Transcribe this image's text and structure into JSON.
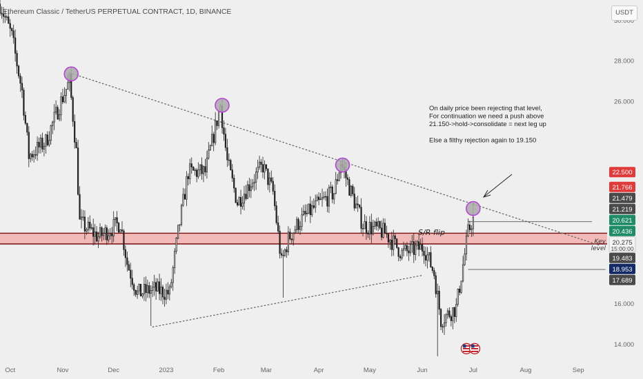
{
  "header": {
    "title": "Ethereum Classic / TetherUS PERPETUAL CONTRACT, 1D, BINANCE",
    "currency": "USDT"
  },
  "colors": {
    "background": "#efefef",
    "candle": "#222222",
    "zone_fill": "#f2b9b9",
    "zone_line": "#7a0f0f",
    "marker_fill": "#a9a9a9",
    "marker_stroke": "#b546d6",
    "trendline": "#666666"
  },
  "chart_data": {
    "type": "candlestick",
    "y_axis": {
      "ticks": [
        "30.000",
        "28.000",
        "26.000",
        "16.000",
        "14.000"
      ],
      "range": [
        13.3,
        31.0
      ],
      "position": "right"
    },
    "x_axis": {
      "ticks": [
        "Oct",
        "Nov",
        "Dec",
        "2023",
        "Feb",
        "Mar",
        "Apr",
        "May",
        "Jun",
        "Jul",
        "Aug",
        "Sep"
      ],
      "range": [
        "2022-09-25",
        "2023-09-18"
      ]
    },
    "series": [
      {
        "data_start": "2022-09-25",
        "data_end": "2023-07-01",
        "anchors": [
          [
            "2022-09-25",
            30.8
          ],
          [
            "2022-10-02",
            29.2
          ],
          [
            "2022-10-08",
            26.5
          ],
          [
            "2022-10-12",
            23.3
          ],
          [
            "2022-10-22",
            24.0
          ],
          [
            "2022-10-31",
            26.0
          ],
          [
            "2022-11-05",
            27.0
          ],
          [
            "2022-11-09",
            23.5
          ],
          [
            "2022-11-11",
            20.0
          ],
          [
            "2022-11-22",
            19.3
          ],
          [
            "2022-12-05",
            20.0
          ],
          [
            "2022-12-09",
            18.0
          ],
          [
            "2022-12-15",
            16.5
          ],
          [
            "2022-12-25",
            16.7
          ],
          [
            "2023-01-03",
            16.5
          ],
          [
            "2023-01-08",
            19.5
          ],
          [
            "2023-01-14",
            22.5
          ],
          [
            "2023-01-24",
            22.5
          ],
          [
            "2023-02-02",
            25.8
          ],
          [
            "2023-02-06",
            23.0
          ],
          [
            "2023-02-12",
            21.0
          ],
          [
            "2023-02-20",
            22.0
          ],
          [
            "2023-02-27",
            22.8
          ],
          [
            "2023-03-05",
            21.5
          ],
          [
            "2023-03-10",
            18.0
          ],
          [
            "2023-03-14",
            19.2
          ],
          [
            "2023-03-20",
            20.0
          ],
          [
            "2023-03-30",
            20.8
          ],
          [
            "2023-04-10",
            21.5
          ],
          [
            "2023-04-14",
            23.0
          ],
          [
            "2023-04-20",
            21.5
          ],
          [
            "2023-04-27",
            19.9
          ],
          [
            "2023-05-10",
            19.5
          ],
          [
            "2023-05-20",
            18.5
          ],
          [
            "2023-06-02",
            18.8
          ],
          [
            "2023-06-08",
            17.5
          ],
          [
            "2023-06-12",
            15.2
          ],
          [
            "2023-06-21",
            15.8
          ],
          [
            "2023-06-28",
            19.5
          ],
          [
            "2023-07-01",
            20.27
          ]
        ],
        "spikes": [
          [
            "2022-11-06",
            27.3
          ],
          [
            "2023-02-03",
            26.1
          ],
          [
            "2023-04-15",
            23.2
          ],
          [
            "2023-06-10",
            13.4
          ],
          [
            "2022-12-23",
            14.9
          ],
          [
            "2023-03-11",
            16.3
          ],
          [
            "2023-07-01",
            21.0
          ]
        ]
      }
    ],
    "price_labels": [
      {
        "value": 22.5,
        "text": "22.500",
        "color": "#e03b3b"
      },
      {
        "value": 21.766,
        "text": "21.766",
        "color": "#e03b3b"
      },
      {
        "value": 21.479,
        "text": "21.479",
        "color": "#4a4a4a"
      },
      {
        "value": 21.219,
        "text": "21.219",
        "color": "#4a4a4a"
      },
      {
        "value": 20.621,
        "text": "20.621",
        "color": "#1f8b68"
      },
      {
        "value": 20.436,
        "text": "20.436",
        "color": "#1f8b68"
      },
      {
        "value": 20.275,
        "text": "20.275",
        "color": "#f4f4f4",
        "text_color": "#333333",
        "sub": "15:00:00"
      },
      {
        "value": 19.483,
        "text": "19.483",
        "color": "#4a4a4a"
      },
      {
        "value": 18.953,
        "text": "18.953",
        "color": "#132a66"
      },
      {
        "value": 17.689,
        "text": "17.689",
        "color": "#4a4a4a"
      }
    ],
    "zone": {
      "from": 18.95,
      "to": 19.48
    },
    "trendlines": [
      {
        "from": [
          "2022-11-07",
          27.35
        ],
        "to": [
          "2023-09-13",
          18.9
        ],
        "style": "dotted"
      },
      {
        "from": [
          "2022-12-24",
          14.85
        ],
        "to": [
          "2023-06-01",
          17.4
        ],
        "style": "dotted"
      }
    ],
    "levels": [
      {
        "value": 20.05,
        "from": "2023-06-28",
        "to": "2023-09-09"
      },
      {
        "value": 17.689,
        "from": "2023-06-28",
        "to": "2023-09-17"
      }
    ],
    "markers": [
      {
        "date": "2022-11-06",
        "value": 27.35
      },
      {
        "date": "2023-02-03",
        "value": 25.8
      },
      {
        "date": "2023-04-15",
        "value": 22.85
      },
      {
        "date": "2023-07-01",
        "value": 20.7
      }
    ],
    "annotations": [
      {
        "id": "note",
        "lines": [
          "On daily price been rejecting that level,",
          "For continuation we need a push above",
          "21.150->hold->consolidate = next leg up",
          "",
          "Else a filthy rejection again to 19.150"
        ]
      },
      {
        "id": "sr",
        "text": "S/R flip"
      },
      {
        "id": "key",
        "lines": [
          "Key",
          "level"
        ]
      }
    ]
  }
}
